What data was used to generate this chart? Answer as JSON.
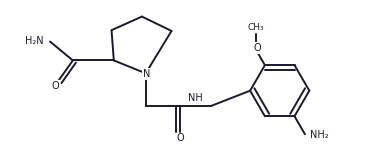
{
  "bg_color": "#ffffff",
  "line_color": "#1a1a2e",
  "line_width": 1.4,
  "figsize": [
    3.81,
    1.64
  ],
  "dpi": 100,
  "xlim": [
    0,
    10
  ],
  "ylim": [
    0,
    4.3
  ]
}
